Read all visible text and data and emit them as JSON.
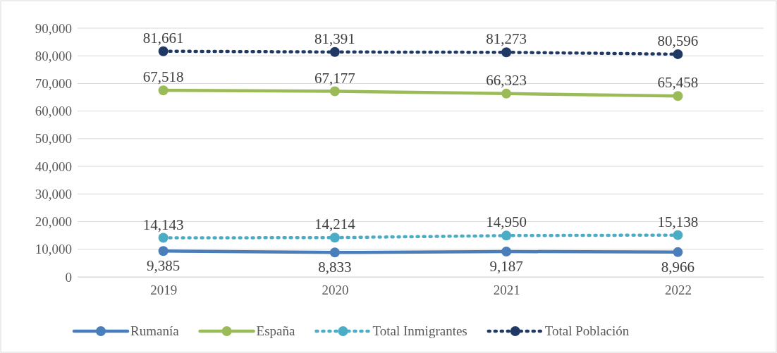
{
  "chart_data": {
    "type": "line",
    "categories": [
      "2019",
      "2020",
      "2021",
      "2022"
    ],
    "series": [
      {
        "name": "Rumanía",
        "color": "#4a7ebb",
        "values": [
          9385,
          8833,
          9187,
          8966
        ],
        "value_labels": [
          "9,385",
          "8,833",
          "9,187",
          "8,966"
        ],
        "line_style": "solid"
      },
      {
        "name": "España",
        "color": "#9bbb59",
        "values": [
          67518,
          67177,
          66323,
          65458
        ],
        "value_labels": [
          "67,518",
          "67,177",
          "66,323",
          "65,458"
        ],
        "line_style": "solid"
      },
      {
        "name": "Total Inmigrantes",
        "color": "#4bacc6",
        "values": [
          14143,
          14214,
          14950,
          15138
        ],
        "value_labels": [
          "14,143",
          "14,214",
          "14,950",
          "15,138"
        ],
        "line_style": "dotted"
      },
      {
        "name": "Total Población",
        "color": "#1f3864",
        "values": [
          81661,
          81391,
          81273,
          80596
        ],
        "value_labels": [
          "81,661",
          "81,391",
          "81,273",
          "80,596"
        ],
        "line_style": "dotted"
      }
    ],
    "ylim": [
      0,
      90000
    ],
    "yticks": [
      0,
      {
        "value": 10000,
        "label": "10,000"
      },
      {
        "value": 20000,
        "label": "20,000"
      },
      {
        "value": 30000,
        "label": "30,000"
      },
      {
        "value": 40000,
        "label": "40,000"
      },
      {
        "value": 50000,
        "label": "50,000"
      },
      {
        "value": 60000,
        "label": "60,000"
      },
      {
        "value": 70000,
        "label": "70,000"
      },
      {
        "value": 80000,
        "label": "80,000"
      },
      {
        "value": 90000,
        "label": "90,000"
      }
    ],
    "grid": "y",
    "legend": "bottom",
    "marker": "circle"
  }
}
